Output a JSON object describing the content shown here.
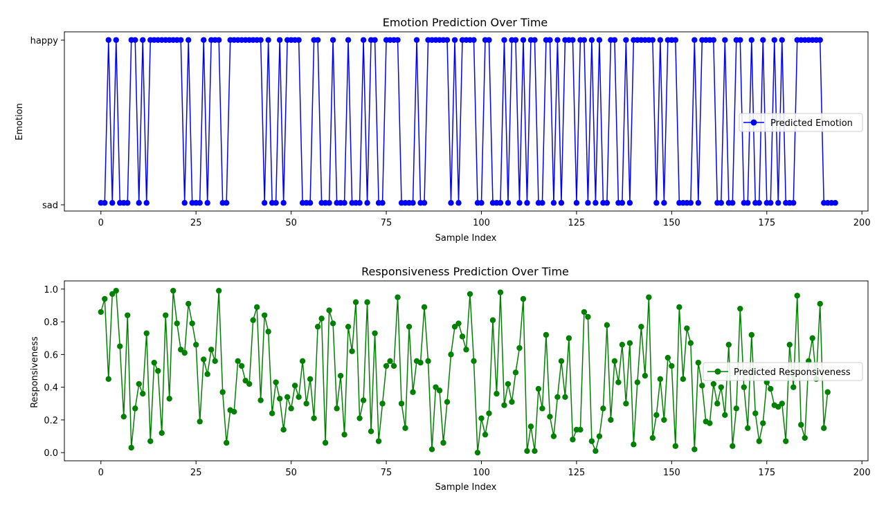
{
  "chart_data": [
    {
      "type": "line",
      "title": "Emotion Prediction Over Time",
      "xlabel": "Sample Index",
      "ylabel": "Emotion",
      "categories_y": [
        "sad",
        "happy"
      ],
      "xlim": [
        -9.6,
        201.6
      ],
      "ylim": [
        -0.05,
        1.05
      ],
      "xticks": [
        0,
        25,
        50,
        75,
        100,
        125,
        150,
        175,
        200
      ],
      "color": "#0000ff",
      "legend": {
        "label": "Predicted Emotion",
        "position": "center-right"
      },
      "series": [
        {
          "name": "Predicted Emotion",
          "values": [
            0,
            0,
            1,
            0,
            1,
            0,
            0,
            0,
            1,
            1,
            0,
            1,
            0,
            1,
            1,
            1,
            1,
            1,
            1,
            1,
            1,
            1,
            0,
            1,
            0,
            0,
            0,
            1,
            0,
            1,
            1,
            1,
            0,
            0,
            1,
            1,
            1,
            1,
            1,
            1,
            1,
            1,
            1,
            0,
            1,
            0,
            0,
            1,
            0,
            1,
            1,
            1,
            1,
            0,
            0,
            0,
            1,
            1,
            0,
            0,
            0,
            1,
            0,
            0,
            0,
            1,
            0,
            0,
            0,
            1,
            0,
            1,
            1,
            0,
            0,
            1,
            1,
            1,
            1,
            0,
            0,
            0,
            0,
            1,
            0,
            0,
            1,
            1,
            1,
            1,
            1,
            1,
            0,
            1,
            0,
            1,
            1,
            1,
            1,
            0,
            0,
            1,
            1,
            0,
            0,
            0,
            1,
            0,
            1,
            1,
            0,
            1,
            0,
            1,
            1,
            0,
            0,
            1,
            1,
            0,
            1,
            0,
            1,
            1,
            1,
            0,
            1,
            1,
            0,
            1,
            0,
            1,
            0,
            0,
            1,
            1,
            0,
            0,
            1,
            0,
            1,
            1,
            1,
            1,
            1,
            1,
            0,
            1,
            0,
            1,
            1,
            1,
            0,
            0,
            0,
            0,
            1,
            0,
            1,
            1,
            1,
            1,
            0,
            0,
            1,
            0,
            0,
            1,
            1,
            0,
            0,
            1,
            0,
            0,
            1,
            0,
            0,
            1,
            0,
            1,
            0,
            0,
            0,
            1,
            1,
            1,
            1,
            1,
            1,
            1,
            0,
            0,
            0,
            0
          ]
        }
      ]
    },
    {
      "type": "line",
      "title": "Responsiveness Prediction Over Time",
      "xlabel": "Sample Index",
      "ylabel": "Responsiveness",
      "xlim": [
        -9.6,
        201.6
      ],
      "ylim": [
        -0.05,
        1.05
      ],
      "xticks": [
        0,
        25,
        50,
        75,
        100,
        125,
        150,
        175,
        200
      ],
      "yticks": [
        "0.0",
        "0.2",
        "0.4",
        "0.6",
        "0.8",
        "1.0"
      ],
      "color": "#008000",
      "legend": {
        "label": "Predicted Responsiveness",
        "position": "center-right"
      },
      "series": [
        {
          "name": "Predicted Responsiveness",
          "values": [
            0.86,
            0.94,
            0.45,
            0.97,
            0.99,
            0.65,
            0.22,
            0.84,
            0.03,
            0.27,
            0.42,
            0.36,
            0.73,
            0.07,
            0.55,
            0.5,
            0.12,
            0.84,
            0.33,
            0.99,
            0.79,
            0.63,
            0.61,
            0.91,
            0.79,
            0.66,
            0.19,
            0.57,
            0.48,
            0.63,
            0.56,
            0.99,
            0.37,
            0.06,
            0.26,
            0.25,
            0.56,
            0.53,
            0.44,
            0.42,
            0.81,
            0.89,
            0.32,
            0.84,
            0.74,
            0.24,
            0.43,
            0.33,
            0.14,
            0.34,
            0.27,
            0.41,
            0.34,
            0.56,
            0.3,
            0.45,
            0.21,
            0.77,
            0.82,
            0.06,
            0.87,
            0.79,
            0.27,
            0.47,
            0.11,
            0.77,
            0.62,
            0.92,
            0.21,
            0.32,
            0.92,
            0.13,
            0.73,
            0.07,
            0.3,
            0.53,
            0.56,
            0.53,
            0.95,
            0.3,
            0.15,
            0.77,
            0.37,
            0.56,
            0.55,
            0.89,
            0.56,
            0.02,
            0.4,
            0.38,
            0.06,
            0.31,
            0.6,
            0.77,
            0.79,
            0.71,
            0.63,
            0.97,
            0.56,
            0.0,
            0.21,
            0.11,
            0.24,
            0.81,
            0.36,
            0.98,
            0.29,
            0.42,
            0.31,
            0.49,
            0.64,
            0.94,
            0.01,
            0.16,
            0.01,
            0.39,
            0.27,
            0.72,
            0.22,
            0.1,
            0.34,
            0.56,
            0.34,
            0.7,
            0.08,
            0.14,
            0.14,
            0.86,
            0.83,
            0.07,
            0.01,
            0.1,
            0.27,
            0.78,
            0.2,
            0.56,
            0.43,
            0.66,
            0.3,
            0.67,
            0.05,
            0.43,
            0.77,
            0.47,
            0.95,
            0.09,
            0.23,
            0.45,
            0.2,
            0.58,
            0.53,
            0.04,
            0.89,
            0.45,
            0.76,
            0.67,
            0.02,
            0.55,
            0.41,
            0.19,
            0.18,
            0.42,
            0.3,
            0.4,
            0.23,
            0.66,
            0.04,
            0.27,
            0.88,
            0.4,
            0.15,
            0.72,
            0.24,
            0.07,
            0.18,
            0.43,
            0.39,
            0.29,
            0.28,
            0.3,
            0.07,
            0.66,
            0.4,
            0.96,
            0.17,
            0.09,
            0.56,
            0.7,
            0.45,
            0.91,
            0.15,
            0.37
          ]
        }
      ]
    }
  ]
}
